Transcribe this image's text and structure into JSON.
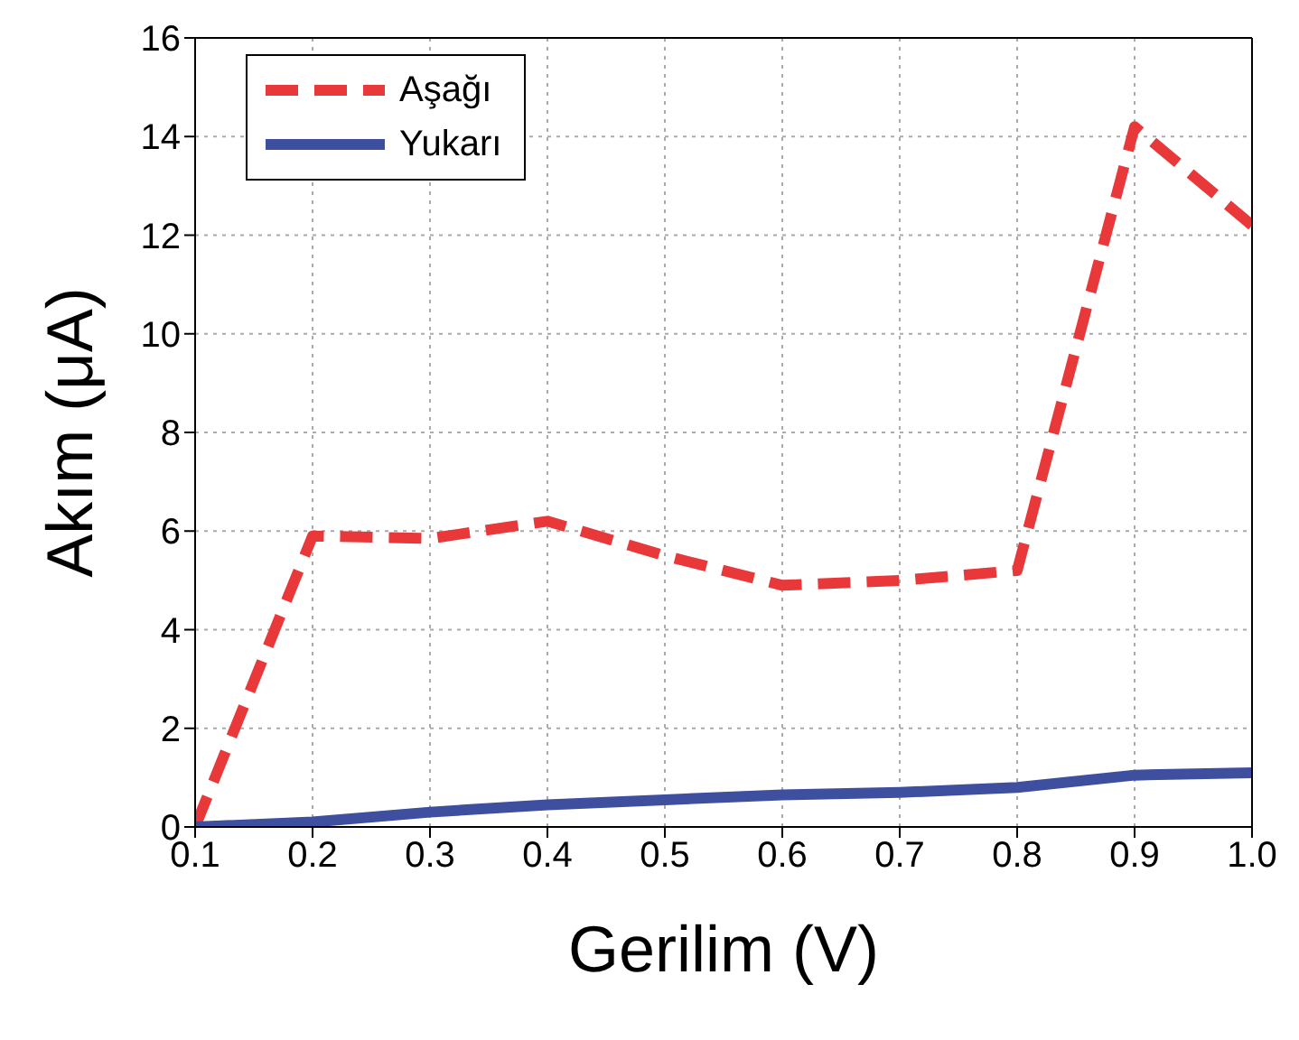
{
  "chart_data": {
    "type": "line",
    "xlabel": "Gerilim (V)",
    "ylabel": "Akım (μA)",
    "x": [
      0.1,
      0.2,
      0.3,
      0.4,
      0.5,
      0.6,
      0.7,
      0.8,
      0.9,
      1.0
    ],
    "series": [
      {
        "name": "Aşağı",
        "color": "#e8383a",
        "line_style": "dashed",
        "values": [
          0,
          5.9,
          5.85,
          6.2,
          5.5,
          4.9,
          5.0,
          5.2,
          14.2,
          12.2
        ]
      },
      {
        "name": "Yukarı",
        "color": "#3f4fa0",
        "line_style": "solid",
        "values": [
          0,
          0.1,
          0.3,
          0.45,
          0.55,
          0.65,
          0.7,
          0.8,
          1.05,
          1.1
        ]
      }
    ],
    "xlim": [
      0.1,
      1.0
    ],
    "xticks": [
      0.1,
      0.2,
      0.3,
      0.4,
      0.5,
      0.6,
      0.7,
      0.8,
      0.9,
      {
        "value": 1.0,
        "label": "1.0"
      }
    ],
    "ylim": [
      0,
      16
    ],
    "yticks": [
      0,
      2,
      4,
      6,
      8,
      10,
      12,
      14,
      16
    ],
    "grid": true,
    "legend": "top left",
    "marker": "none"
  }
}
